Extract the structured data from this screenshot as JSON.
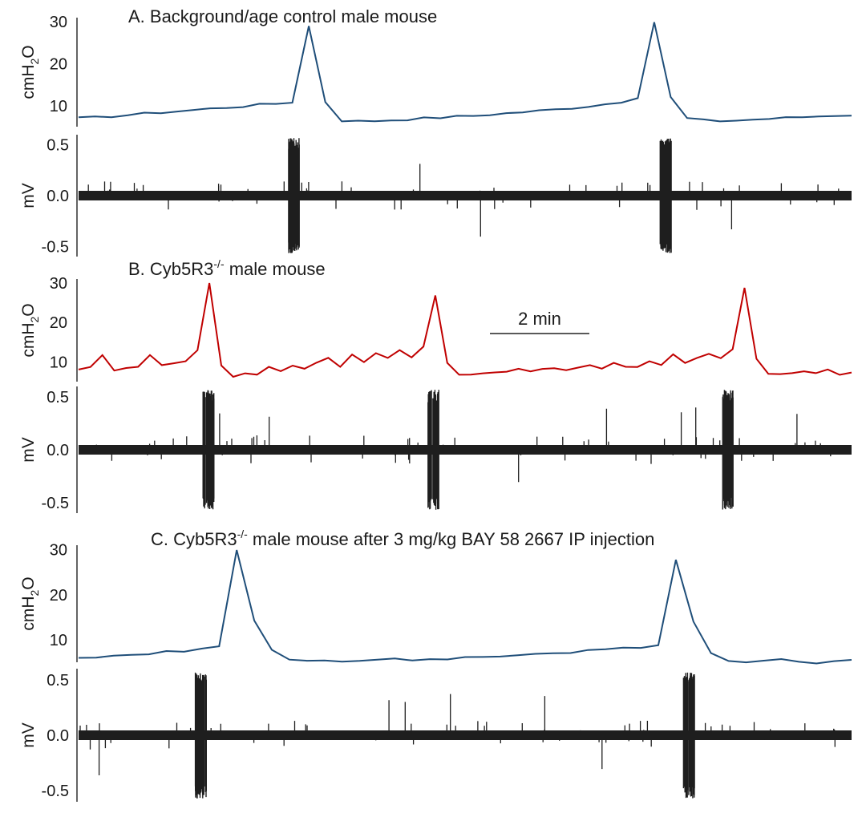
{
  "chart_data": [
    {
      "type": "line",
      "title": "A. Background/age control male mouse",
      "panels": [
        {
          "ylabel_main": "cmH",
          "ylabel_sub": "2",
          "ylabel_end": "O",
          "yticks": [
            "30",
            "20",
            "10"
          ],
          "yvalues": [
            30,
            20,
            10
          ],
          "ylim": [
            5,
            31
          ],
          "color": "#1f4e79",
          "series": [
            {
              "values": [
                7,
                7.2,
                7.5,
                7.8,
                8.1,
                8.4,
                8.7,
                9,
                9.3,
                9.6,
                9.9,
                10.2,
                10.5,
                10.9,
                29,
                11,
                6.5,
                6.3,
                6.4,
                6.6,
                6.8,
                7,
                7.2,
                7.4,
                7.6,
                7.9,
                8.2,
                8.5,
                8.8,
                9.1,
                9.5,
                9.9,
                10.4,
                11,
                11.5,
                30,
                12,
                7,
                6.5,
                6.4,
                6.5,
                6.7,
                6.9,
                7.1,
                7.3,
                7.5,
                7.7,
                7.8
              ]
            }
          ]
        },
        {
          "ylabel": "mV",
          "yticks": [
            "0.5",
            "0.0",
            "-0.5"
          ],
          "yvalues": [
            0.5,
            0,
            -0.5
          ],
          "ylim": [
            -0.6,
            0.6
          ],
          "color": "#1e1e1e",
          "bursts": [
            0.28,
            0.76
          ]
        }
      ]
    },
    {
      "type": "line",
      "title_main": "B. Cyb5R3",
      "title_sup": "-/-",
      "title_end": " male mouse",
      "scale_bar": "2 min",
      "panels": [
        {
          "ylabel_main": "cmH",
          "ylabel_sub": "2",
          "ylabel_end": "O",
          "yticks": [
            "30",
            "20",
            "10"
          ],
          "yvalues": [
            30,
            20,
            10
          ],
          "ylim": [
            5,
            31
          ],
          "color": "#c00000",
          "series": [
            {
              "values": [
                8,
                8.5,
                12,
                8,
                8.3,
                9,
                12,
                9,
                9.5,
                10,
                13,
                30,
                9,
                6.5,
                7,
                7,
                9,
                7.5,
                9,
                8,
                10,
                11,
                9,
                12,
                10,
                12,
                11,
                13,
                11,
                14,
                27,
                10,
                7,
                7,
                7.2,
                7.5,
                7.5,
                8,
                7.8,
                8,
                8.5,
                8,
                8.5,
                9,
                8.5,
                10,
                8.5,
                9,
                10,
                9.5,
                12,
                10,
                11,
                12,
                11,
                13,
                29,
                11,
                7,
                7,
                7,
                7.5,
                7,
                8,
                7,
                7.2
              ]
            }
          ]
        },
        {
          "ylabel": "mV",
          "yticks": [
            "0.5",
            "0.0",
            "-0.5"
          ],
          "yvalues": [
            0.5,
            0,
            -0.5
          ],
          "ylim": [
            -0.6,
            0.6
          ],
          "color": "#1e1e1e",
          "bursts": [
            0.17,
            0.46,
            0.84
          ]
        }
      ]
    },
    {
      "type": "line",
      "title_main": "C. Cyb5R3",
      "title_sup": "-/-",
      "title_end": " male mouse after 3 mg/kg BAY 58 2667 IP injection",
      "panels": [
        {
          "ylabel_main": "cmH",
          "ylabel_sub": "2",
          "ylabel_end": "O",
          "yticks": [
            "30",
            "20",
            "10"
          ],
          "yvalues": [
            30,
            20,
            10
          ],
          "ylim": [
            5,
            31
          ],
          "color": "#1f4e79",
          "series": [
            {
              "values": [
                6,
                6.2,
                6.5,
                6.8,
                7,
                7.3,
                7.6,
                8,
                8.3,
                30,
                14,
                8,
                5.5,
                5.2,
                5.2,
                5.3,
                5.4,
                5.6,
                5.8,
                5.6,
                5.7,
                5.9,
                6.1,
                6.3,
                6.5,
                6.8,
                7,
                7.2,
                7.3,
                7.5,
                7.8,
                8,
                8.2,
                8.5,
                28,
                14,
                7,
                5,
                5,
                5.2,
                6,
                5,
                5,
                5.2,
                5.5
              ]
            }
          ]
        },
        {
          "ylabel": "mV",
          "yticks": [
            "0.5",
            "0.0",
            "-0.5"
          ],
          "yvalues": [
            0.5,
            0,
            -0.5
          ],
          "ylim": [
            -0.6,
            0.6
          ],
          "color": "#1e1e1e",
          "bursts": [
            0.16,
            0.79
          ]
        }
      ]
    }
  ]
}
